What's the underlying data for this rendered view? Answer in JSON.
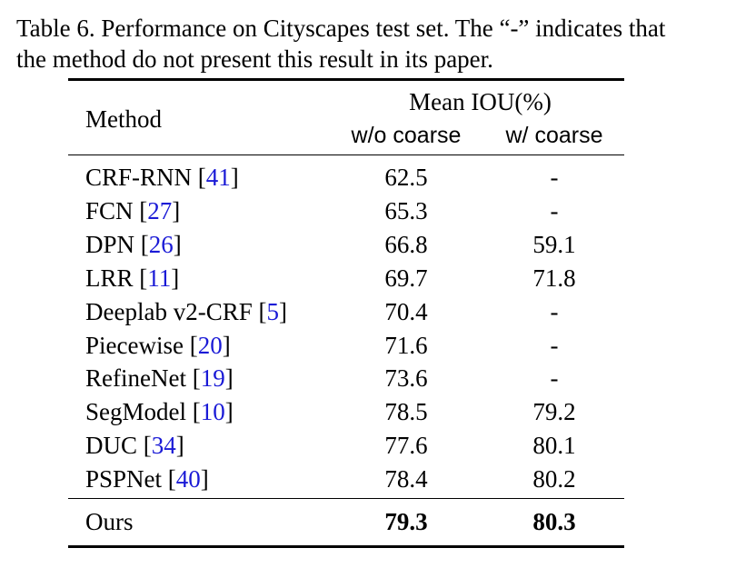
{
  "caption": {
    "line1": "Table 6. Performance on Cityscapes test set. The “-” indicates that",
    "line2": "the method do not present this result in its paper."
  },
  "table": {
    "header": {
      "method": "Method",
      "group": "Mean IOU(%)",
      "col1": "w/o coarse",
      "col2": "w/ coarse"
    },
    "rows": [
      {
        "name": "CRF-RNN ",
        "open": "[",
        "ref": "41",
        "close": "]",
        "wo": "62.5",
        "w": "-"
      },
      {
        "name": "FCN ",
        "open": "[",
        "ref": "27",
        "close": "]",
        "wo": "65.3",
        "w": "-"
      },
      {
        "name": "DPN ",
        "open": "[",
        "ref": "26",
        "close": "]",
        "wo": "66.8",
        "w": "59.1"
      },
      {
        "name": "LRR ",
        "open": "[",
        "ref": "11",
        "close": "]",
        "wo": "69.7",
        "w": "71.8"
      },
      {
        "name": "Deeplab v2-CRF ",
        "open": "[",
        "ref": "5",
        "close": "]",
        "wo": "70.4",
        "w": "-"
      },
      {
        "name": "Piecewise ",
        "open": "[",
        "ref": "20",
        "close": "]",
        "wo": "71.6",
        "w": "-"
      },
      {
        "name": "RefineNet ",
        "open": "[",
        "ref": "19",
        "close": "]",
        "wo": "73.6",
        "w": "-"
      },
      {
        "name": "SegModel ",
        "open": "[",
        "ref": "10",
        "close": "]",
        "wo": "78.5",
        "w": "79.2"
      },
      {
        "name": "DUC ",
        "open": "[",
        "ref": "34",
        "close": "]",
        "wo": "77.6",
        "w": "80.1"
      },
      {
        "name": "PSPNet ",
        "open": "[",
        "ref": "40",
        "close": "]",
        "wo": "78.4",
        "w": "80.2"
      }
    ],
    "ours": {
      "name": "Ours",
      "wo": "79.3",
      "w": "80.3"
    }
  }
}
